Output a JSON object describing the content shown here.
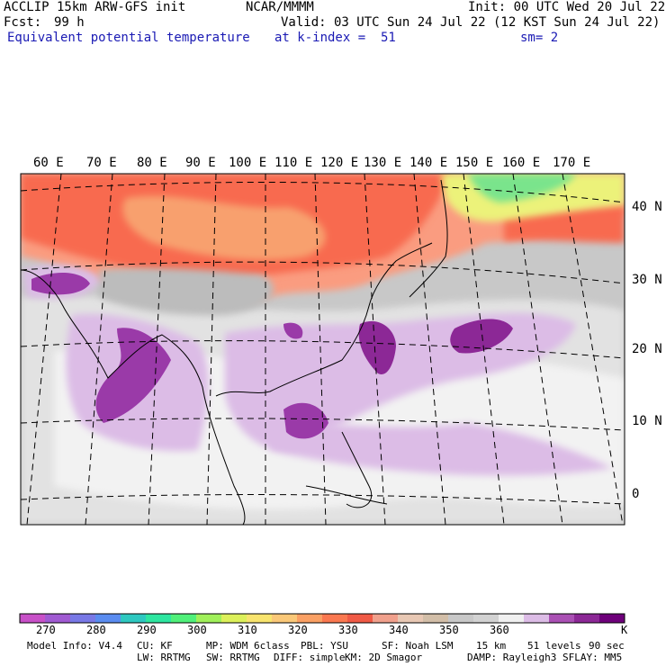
{
  "header": {
    "model": "ACCLIP 15km ARW-GFS init",
    "org": "NCAR/MMMM",
    "init": "Init: 00 UTC Wed 20 Jul 22",
    "fcst_label": "Fcst:",
    "fcst_value": "99 h",
    "valid": "Valid: 03 UTC Sun 24 Jul 22 (12 KST Sun 24 Jul 22)",
    "field": "Equivalent potential temperature",
    "level": "at k-index =  51",
    "smooth": "sm= 2"
  },
  "map": {
    "lon_labels": [
      "60 E",
      "70 E",
      "80 E",
      "90 E",
      "100 E",
      "110 E",
      "120 E",
      "130 E",
      "140 E",
      "150 E",
      "160 E",
      "170 E"
    ],
    "lat_labels": [
      "40 N",
      "30 N",
      "20 N",
      "10 N",
      "0"
    ]
  },
  "colorbar": {
    "colors": [
      "#c850c8",
      "#a05ad2",
      "#7878e6",
      "#5a8cf0",
      "#2ec8c0",
      "#2ee6a0",
      "#50f07a",
      "#a0f05a",
      "#dcf05a",
      "#f8e46e",
      "#fac878",
      "#faa064",
      "#fa7850",
      "#f05a46",
      "#f0a08c",
      "#e8c8b4",
      "#d2bea8",
      "#c8c8c8",
      "#d2d2d2",
      "#f0f0f0",
      "#dcbce6",
      "#aa50b4",
      "#8c2896",
      "#6e007a"
    ],
    "ticks": [
      "270",
      "280",
      "290",
      "300",
      "310",
      "320",
      "330",
      "340",
      "350",
      "360"
    ],
    "unit": "K"
  },
  "footer": {
    "line1": [
      "Model Info: V4.4",
      "CU: KF",
      "MP: WDM 6class",
      "PBL: YSU",
      "SF: Noah LSM",
      "15 km",
      "51 levels",
      "90 sec"
    ],
    "line2": [
      "LW: RRTMG",
      "SW: RRTMG",
      "DIFF: simple",
      "KM: 2D Smagor",
      "DAMP: Rayleigh3",
      "SFLAY: MM5"
    ]
  }
}
